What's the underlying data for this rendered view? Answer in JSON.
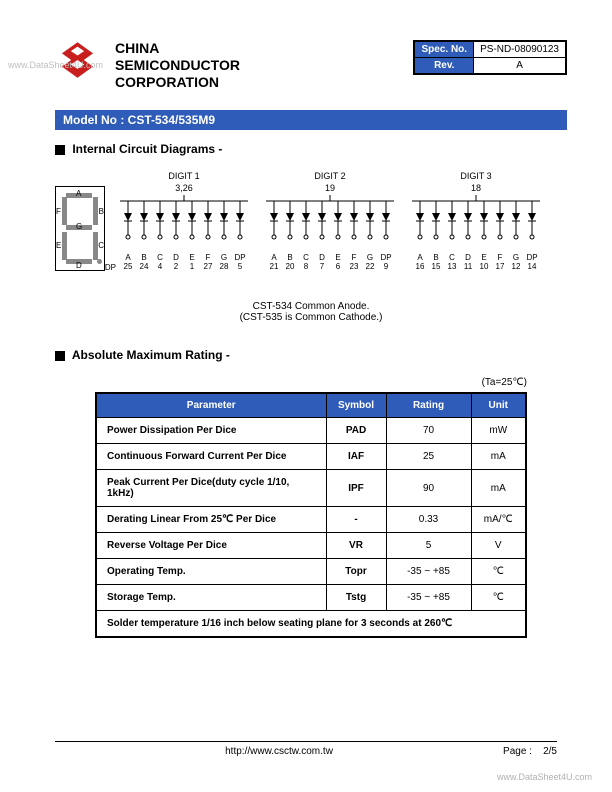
{
  "watermark_left": "www.DataSheet4U.com",
  "watermark_bottom": "www.DataSheet4U.com",
  "company_line1": "CHINA",
  "company_line2": "SEMICONDUCTOR",
  "company_line3": "CORPORATION",
  "spec": {
    "spec_no_label": "Spec. No.",
    "spec_no_value": "PS-ND-08090123",
    "rev_label": "Rev.",
    "rev_value": "A"
  },
  "model_bar": "Model No : CST-534/535M9",
  "section1_title": "Internal Circuit Diagrams -",
  "segments": {
    "A": "A",
    "B": "B",
    "C": "C",
    "D": "D",
    "E": "E",
    "F": "F",
    "G": "G",
    "DP": "DP"
  },
  "digits": [
    {
      "label": "DIGIT 1",
      "top_pin": "3,26",
      "cols": [
        [
          "A",
          "25"
        ],
        [
          "B",
          "24"
        ],
        [
          "C",
          "4"
        ],
        [
          "D",
          "2"
        ],
        [
          "E",
          "1"
        ],
        [
          "F",
          "27"
        ],
        [
          "G",
          "28"
        ],
        [
          "DP",
          "5"
        ]
      ]
    },
    {
      "label": "DIGIT 2",
      "top_pin": "19",
      "cols": [
        [
          "A",
          "21"
        ],
        [
          "B",
          "20"
        ],
        [
          "C",
          "8"
        ],
        [
          "D",
          "7"
        ],
        [
          "E",
          "6"
        ],
        [
          "F",
          "23"
        ],
        [
          "G",
          "22"
        ],
        [
          "DP",
          "9"
        ]
      ]
    },
    {
      "label": "DIGIT 3",
      "top_pin": "18",
      "cols": [
        [
          "A",
          "16"
        ],
        [
          "B",
          "15"
        ],
        [
          "C",
          "13"
        ],
        [
          "D",
          "11"
        ],
        [
          "E",
          "10"
        ],
        [
          "F",
          "17"
        ],
        [
          "G",
          "12"
        ],
        [
          "DP",
          "14"
        ]
      ]
    }
  ],
  "caption_line1": "CST-534 Common Anode.",
  "caption_line2": "(CST-535 is Common Cathode.)",
  "section2_title": "Absolute Maximum Rating -",
  "ta_note": "(Ta=25℃)",
  "ratings": {
    "headers": [
      "Parameter",
      "Symbol",
      "Rating",
      "Unit"
    ],
    "rows": [
      [
        "Power Dissipation Per Dice",
        "PAD",
        "70",
        "mW"
      ],
      [
        "Continuous Forward Current Per Dice",
        "IAF",
        "25",
        "mA"
      ],
      [
        "Peak Current Per Dice(duty cycle 1/10, 1kHz)",
        "IPF",
        "90",
        "mA"
      ],
      [
        "Derating Linear From 25℃ Per Dice",
        "-",
        "0.33",
        "mA/℃"
      ],
      [
        "Reverse Voltage Per Dice",
        "VR",
        "5",
        "V"
      ],
      [
        "Operating Temp.",
        "Topr",
        "-35 ~ +85",
        "℃"
      ],
      [
        "Storage Temp.",
        "Tstg",
        "-35 ~ +85",
        "℃"
      ]
    ],
    "note": "Solder temperature 1/16 inch below seating plane for 3 seconds at 260℃"
  },
  "footer_url": "http://www.csctw.com.tw",
  "footer_page_label": "Page :",
  "footer_page_value": "2/5",
  "colors": {
    "blue": "#2e5cb8",
    "logo_red": "#c81e1e"
  }
}
